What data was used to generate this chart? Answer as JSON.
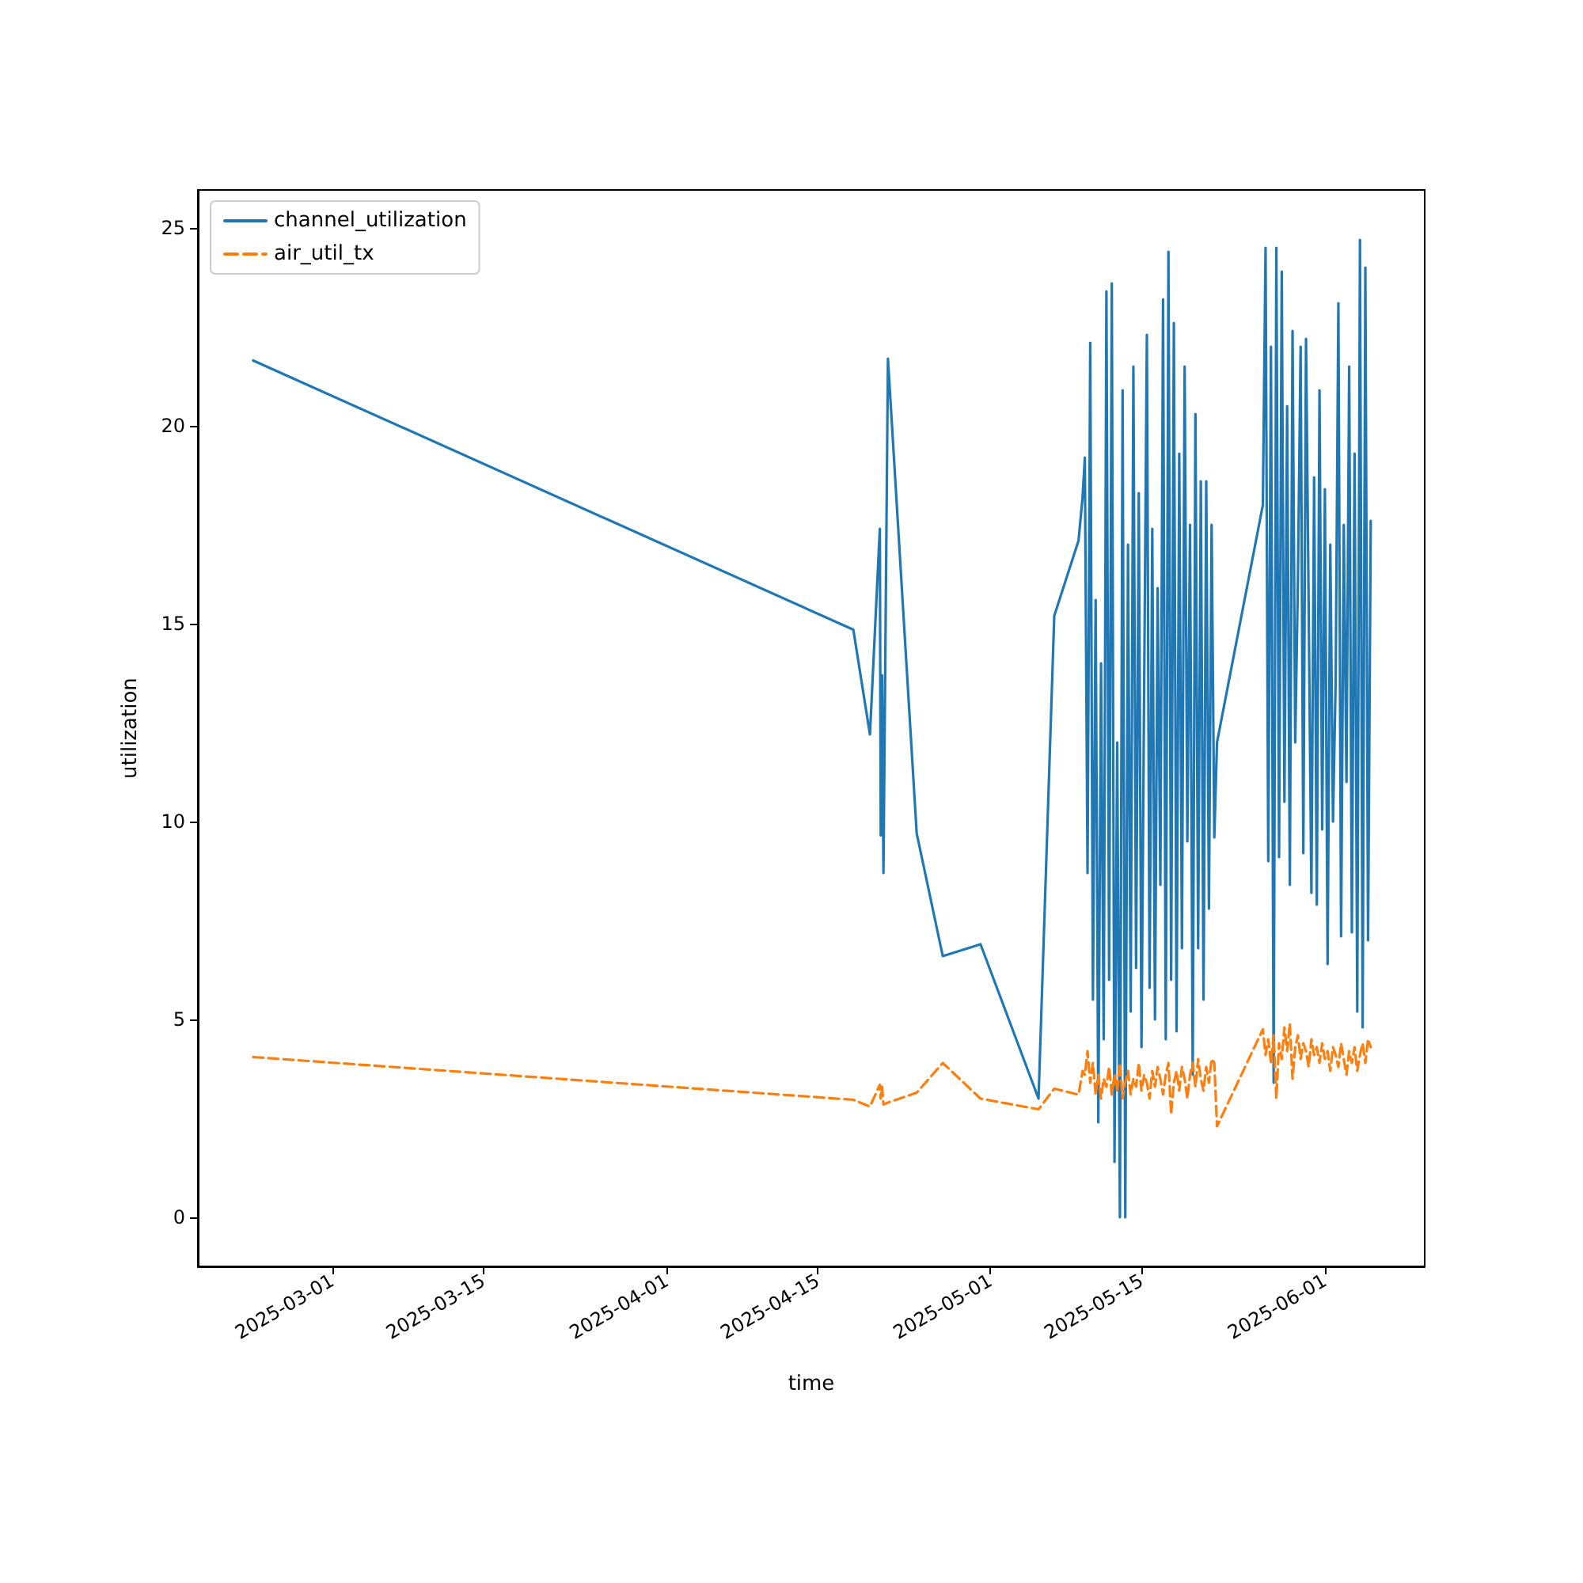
{
  "chart_data": {
    "type": "line",
    "xlabel": "time",
    "ylabel": "utilization",
    "x": [
      "2025-02-21T16:00",
      "2025-04-18T07:00",
      "2025-04-19T20:00",
      "2025-04-20T18:00",
      "2025-04-20T20:00",
      "2025-04-20T23:00",
      "2025-04-21T02:00",
      "2025-04-21T12:00",
      "2025-04-24T04:00",
      "2025-04-26T14:00",
      "2025-04-30T02:00",
      "2025-05-05T11:00",
      "2025-05-06T22:00",
      "2025-05-09T04:00",
      "2025-05-09T13:00",
      "2025-05-09T18:00",
      "2025-05-10T00:00",
      "2025-05-10T06:00",
      "2025-05-10T12:00",
      "2025-05-10T18:00",
      "2025-05-11T00:00",
      "2025-05-11T06:00",
      "2025-05-11T12:00",
      "2025-05-11T18:00",
      "2025-05-12T00:00",
      "2025-05-12T06:00",
      "2025-05-12T12:00",
      "2025-05-12T18:00",
      "2025-05-13T00:00",
      "2025-05-13T06:00",
      "2025-05-13T12:00",
      "2025-05-13T18:00",
      "2025-05-14T00:00",
      "2025-05-14T06:00",
      "2025-05-14T12:00",
      "2025-05-14T18:00",
      "2025-05-15T00:00",
      "2025-05-15T06:00",
      "2025-05-15T12:00",
      "2025-05-15T18:00",
      "2025-05-16T00:00",
      "2025-05-16T06:00",
      "2025-05-16T12:00",
      "2025-05-16T18:00",
      "2025-05-17T00:00",
      "2025-05-17T06:00",
      "2025-05-17T12:00",
      "2025-05-17T18:00",
      "2025-05-18T00:00",
      "2025-05-18T06:00",
      "2025-05-18T12:00",
      "2025-05-18T18:00",
      "2025-05-19T00:00",
      "2025-05-19T06:00",
      "2025-05-19T12:00",
      "2025-05-19T18:00",
      "2025-05-20T00:00",
      "2025-05-20T06:00",
      "2025-05-20T12:00",
      "2025-05-20T18:00",
      "2025-05-21T00:00",
      "2025-05-21T06:00",
      "2025-05-21T12:00",
      "2025-05-21T18:00",
      "2025-05-22T00:00",
      "2025-05-26T06:00",
      "2025-05-26T12:00",
      "2025-05-26T18:00",
      "2025-05-27T00:00",
      "2025-05-27T06:00",
      "2025-05-27T12:00",
      "2025-05-27T18:00",
      "2025-05-28T00:00",
      "2025-05-28T06:00",
      "2025-05-28T12:00",
      "2025-05-28T18:00",
      "2025-05-29T00:00",
      "2025-05-29T06:00",
      "2025-05-29T12:00",
      "2025-05-29T18:00",
      "2025-05-30T00:00",
      "2025-05-30T06:00",
      "2025-05-30T12:00",
      "2025-05-30T18:00",
      "2025-05-31T00:00",
      "2025-05-31T06:00",
      "2025-05-31T12:00",
      "2025-05-31T18:00",
      "2025-06-01T00:00",
      "2025-06-01T06:00",
      "2025-06-01T12:00",
      "2025-06-01T18:00",
      "2025-06-02T00:00",
      "2025-06-02T06:00",
      "2025-06-02T12:00",
      "2025-06-02T18:00",
      "2025-06-03T00:00",
      "2025-06-03T06:00",
      "2025-06-03T12:00",
      "2025-06-03T18:00",
      "2025-06-04T00:00",
      "2025-06-04T06:00",
      "2025-06-04T12:00",
      "2025-06-04T18:00",
      "2025-06-05T00:00",
      "2025-06-05T06:00"
    ],
    "series": [
      {
        "name": "channel_utilization",
        "color": "#1f77b4",
        "line_style": "solid",
        "values": [
          21.65,
          14.85,
          12.2,
          17.4,
          9.65,
          13.7,
          8.7,
          21.7,
          9.7,
          6.6,
          6.9,
          3.0,
          15.2,
          17.1,
          18.2,
          19.2,
          8.7,
          22.1,
          5.5,
          15.6,
          2.4,
          14.0,
          4.5,
          23.4,
          6.0,
          23.6,
          1.4,
          12.0,
          0,
          20.9,
          0,
          17.0,
          5.2,
          21.5,
          6.3,
          18.3,
          4.3,
          13.5,
          22.3,
          5.8,
          17.4,
          5.0,
          15.9,
          8.4,
          23.2,
          4.5,
          24.4,
          6.0,
          22.6,
          4.7,
          19.3,
          6.8,
          21.5,
          9.5,
          17.5,
          3.6,
          20.3,
          6.8,
          18.6,
          5.5,
          18.6,
          7.8,
          17.5,
          9.6,
          12.0,
          18.0,
          24.5,
          9.0,
          22.0,
          3.4,
          24.5,
          9.1,
          23.9,
          10.5,
          20.5,
          8.4,
          22.4,
          12.0,
          16.1,
          22.0,
          9.2,
          22.2,
          15.3,
          8.2,
          18.7,
          7.9,
          20.9,
          9.8,
          18.4,
          6.4,
          17.0,
          10.0,
          13.6,
          23.1,
          7.1,
          17.5,
          11.0,
          21.5,
          7.2,
          19.3,
          5.2,
          24.7,
          4.8,
          24.0,
          7.0,
          17.6
        ]
      },
      {
        "name": "air_util_tx",
        "color": "#ff7f0e",
        "line_style": "dashed",
        "values": [
          4.05,
          2.97,
          2.8,
          3.35,
          3.0,
          3.3,
          2.85,
          2.9,
          3.15,
          3.9,
          3.0,
          2.73,
          3.25,
          3.1,
          3.7,
          3.6,
          4.2,
          3.4,
          3.9,
          3.1,
          3.6,
          3.0,
          3.5,
          3.3,
          3.8,
          3.1,
          3.6,
          3.2,
          3.9,
          3.0,
          3.4,
          3.7,
          3.1,
          3.5,
          3.3,
          3.9,
          3.2,
          3.6,
          3.4,
          3.0,
          3.7,
          3.3,
          3.8,
          3.5,
          3.1,
          3.6,
          3.9,
          2.6,
          3.4,
          3.7,
          3.2,
          3.8,
          3.5,
          3.0,
          3.6,
          3.9,
          3.3,
          4.0,
          3.5,
          3.2,
          3.8,
          3.4,
          4.0,
          3.9,
          2.3,
          4.75,
          4.1,
          4.5,
          3.9,
          4.6,
          3.0,
          4.4,
          4.0,
          4.8,
          4.2,
          4.9,
          3.5,
          4.3,
          4.6,
          4.0,
          4.4,
          4.2,
          3.8,
          4.5,
          4.1,
          4.3,
          3.9,
          4.4,
          4.0,
          4.2,
          3.7,
          4.3,
          4.1,
          3.8,
          4.4,
          4.0,
          3.6,
          4.2,
          3.9,
          4.3,
          3.7,
          4.1,
          4.4,
          3.9,
          4.5,
          4.3
        ]
      }
    ],
    "xlim": [
      "2025-02-16T13:00",
      "2025-06-10T06:00"
    ],
    "xticks": [
      "2025-03-01",
      "2025-03-15",
      "2025-04-01",
      "2025-04-15",
      "2025-05-01",
      "2025-05-15",
      "2025-06-01"
    ],
    "ylim": [
      -1.24,
      25.96
    ],
    "yticks": [
      0,
      5,
      10,
      15,
      20,
      25
    ],
    "grid": false,
    "legend": "top left",
    "marker": "none"
  }
}
